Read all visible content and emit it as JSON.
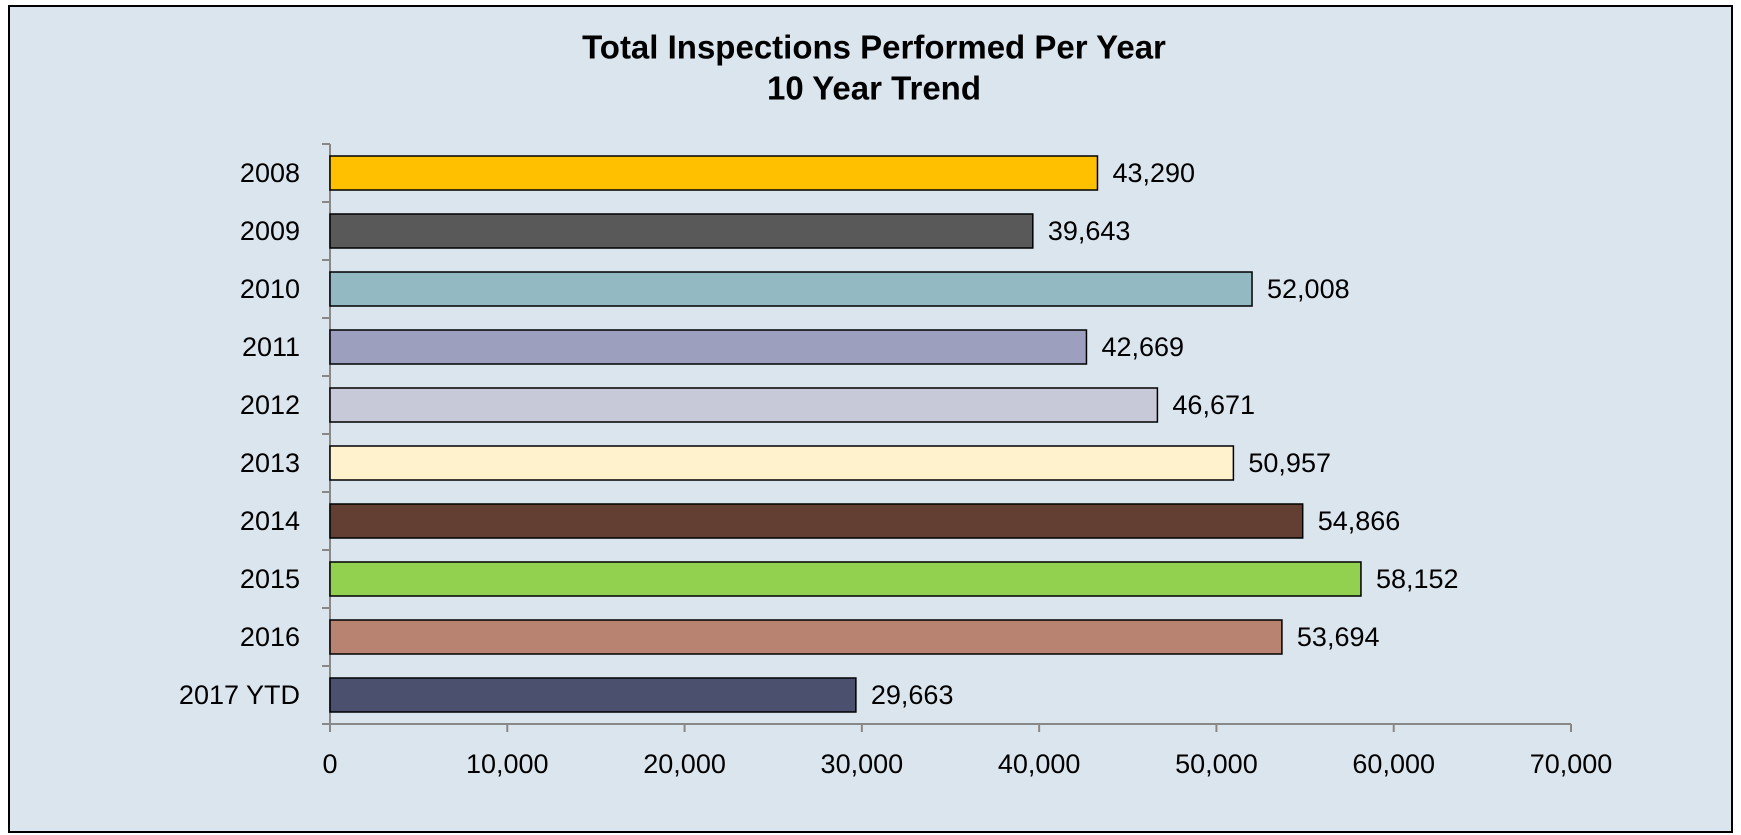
{
  "chart_data": {
    "type": "bar",
    "orientation": "horizontal",
    "title": "Total Inspections Performed Per Year",
    "subtitle": "10 Year Trend",
    "categories": [
      "2008",
      "2009",
      "2010",
      "2011",
      "2012",
      "2013",
      "2014",
      "2015",
      "2016",
      "2017 YTD"
    ],
    "values": [
      43290,
      39643,
      52008,
      42669,
      46671,
      50957,
      54866,
      58152,
      53694,
      29663
    ],
    "value_labels": [
      "43,290",
      "39,643",
      "52,008",
      "42,669",
      "46,671",
      "50,957",
      "54,866",
      "58,152",
      "53,694",
      "29,663"
    ],
    "colors": [
      "#ffc000",
      "#595959",
      "#93b9c3",
      "#9c9fbd",
      "#c8c9d8",
      "#fff2cc",
      "#633f33",
      "#92d050",
      "#b98371",
      "#4a506e"
    ],
    "xlim": [
      0,
      70000
    ],
    "xticks": [
      0,
      {
        "value": 10000,
        "label": "10,000"
      },
      {
        "value": 20000,
        "label": "20,000"
      },
      {
        "value": 30000,
        "label": "30,000"
      },
      {
        "value": 40000,
        "label": "40,000"
      },
      {
        "value": 50000,
        "label": "50,000"
      },
      {
        "value": 60000,
        "label": "60,000"
      },
      {
        "value": 70000,
        "label": "70,000"
      }
    ],
    "grid": false
  }
}
